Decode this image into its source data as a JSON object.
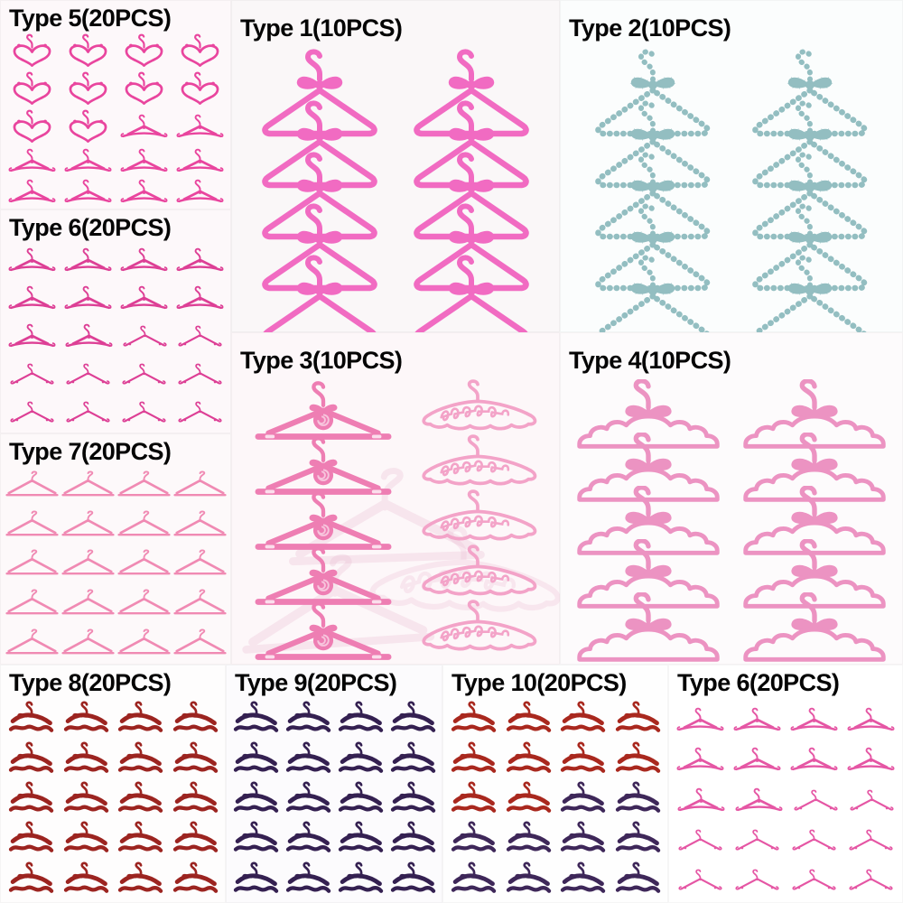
{
  "panels": [
    {
      "id": "type5",
      "label": "Type 5(20PCS)",
      "color": "#e9459e",
      "bg": "#fdf8fa",
      "layout": "grid",
      "rows": [
        [
          "heart",
          "heart",
          "heart",
          "heart"
        ],
        [
          "heart",
          "heart",
          "heart",
          "heart"
        ],
        [
          "heart",
          "heart",
          "scroll",
          "scroll"
        ],
        [
          "scroll",
          "scroll",
          "scroll",
          "scroll"
        ],
        [
          "scroll",
          "scroll",
          "scroll",
          "scroll"
        ]
      ]
    },
    {
      "id": "type6a",
      "label": "Type 6(20PCS)",
      "color": "#dd3f95",
      "bg": "#fdf8fa",
      "layout": "grid",
      "rows": [
        [
          "scroll",
          "scroll",
          "scroll",
          "scroll"
        ],
        [
          "scroll",
          "scroll",
          "scroll",
          "scroll"
        ],
        [
          "scroll",
          "scroll",
          "thin",
          "thin"
        ],
        [
          "thin",
          "thin",
          "thin",
          "thin"
        ],
        [
          "thin",
          "thin",
          "thin",
          "thin"
        ]
      ]
    },
    {
      "id": "type7",
      "label": "Type 7(20PCS)",
      "color": "#f08ab3",
      "bg": "#fdf9fa",
      "layout": "grid",
      "rows": [
        [
          "classic",
          "classic",
          "classic",
          "classic"
        ],
        [
          "classic",
          "classic",
          "classic",
          "classic"
        ],
        [
          "classic",
          "classic",
          "classic",
          "classic"
        ],
        [
          "classic",
          "classic",
          "classic",
          "classic"
        ],
        [
          "classic",
          "classic",
          "classic",
          "classic"
        ]
      ]
    },
    {
      "id": "type1",
      "label": "Type 1(10PCS)",
      "color": "#f16bc2",
      "bg": "#faf7f8",
      "layout": "stack",
      "columns": [
        {
          "cell": "ropebow",
          "count": 5
        },
        {
          "cell": "ropebow",
          "count": 5
        }
      ]
    },
    {
      "id": "type2",
      "label": "Type 2(10PCS)",
      "color": "#93bec1",
      "bg": "#fbfdfd",
      "layout": "stack",
      "beaded": true,
      "columns": [
        {
          "cell": "ropebow",
          "count": 5
        },
        {
          "cell": "ropebow",
          "count": 5
        }
      ]
    },
    {
      "id": "type3",
      "label": "Type 3(10PCS)",
      "color": "#ee7eb3",
      "bg": "#fdf7f9",
      "layout": "stack",
      "ghost": true,
      "columns": [
        {
          "cell": "rose",
          "count": 5
        },
        {
          "cell": "script",
          "count": 5,
          "color": "#f3a3c8"
        }
      ]
    },
    {
      "id": "type4",
      "label": "Type 4(10PCS)",
      "color": "#ec93c2",
      "bg": "#fdfbfc",
      "layout": "stack",
      "columns": [
        {
          "cell": "scallop",
          "count": 5
        },
        {
          "cell": "scallop",
          "count": 5
        }
      ]
    },
    {
      "id": "type8",
      "label": "Type 8(20PCS)",
      "color": "#9c2420",
      "bg": "#fefdfd",
      "layout": "grid",
      "rows": [
        [
          "chunky",
          "chunky",
          "chunky",
          "chunky"
        ],
        [
          "chunky",
          "chunky",
          "chunky",
          "chunky"
        ],
        [
          "chunky",
          "chunky",
          "chunky",
          "chunky"
        ],
        [
          "chunky",
          "chunky",
          "chunky",
          "chunky"
        ],
        [
          "chunky",
          "chunky",
          "chunky",
          "chunky"
        ]
      ]
    },
    {
      "id": "type9",
      "label": "Type 9(20PCS)",
      "color": "#342051",
      "bg": "#fcfbfd",
      "layout": "grid",
      "rows": [
        [
          "chunky",
          "chunky",
          "chunky",
          "chunky"
        ],
        [
          "chunky",
          "chunky",
          "chunky",
          "chunky"
        ],
        [
          "chunky",
          "chunky",
          "chunky",
          "chunky"
        ],
        [
          "chunky",
          "chunky",
          "chunky",
          "chunky"
        ],
        [
          "chunky",
          "chunky",
          "chunky",
          "chunky"
        ]
      ]
    },
    {
      "id": "type10",
      "label": "Type 10(20PCS)",
      "color": "#a9281e",
      "alt_color": "#3e2759",
      "bg": "#fefefe",
      "layout": "grid",
      "rows": [
        [
          "chunky",
          "chunky",
          "chunky",
          "chunky"
        ],
        [
          "chunky",
          "chunky",
          "chunky",
          "chunky"
        ],
        [
          "chunky",
          "chunky",
          "chunky:alt",
          "chunky:alt"
        ],
        [
          "chunky:alt",
          "chunky:alt",
          "chunky:alt",
          "chunky:alt"
        ],
        [
          "chunky:alt",
          "chunky:alt",
          "chunky:alt",
          "chunky:alt"
        ]
      ]
    },
    {
      "id": "type6b",
      "label": "Type 6(20PCS)",
      "color": "#e556a4",
      "bg": "#ffffff",
      "layout": "grid",
      "rows": [
        [
          "scroll",
          "scroll",
          "scroll",
          "scroll"
        ],
        [
          "scroll",
          "scroll",
          "scroll",
          "scroll"
        ],
        [
          "scroll",
          "scroll",
          "thin",
          "thin"
        ],
        [
          "thin",
          "thin",
          "thin",
          "thin"
        ],
        [
          "thin",
          "thin",
          "thin",
          "thin"
        ]
      ]
    }
  ],
  "ghost_colors": {
    "classic": "#e8b9cf",
    "script": "#eebcd3"
  }
}
